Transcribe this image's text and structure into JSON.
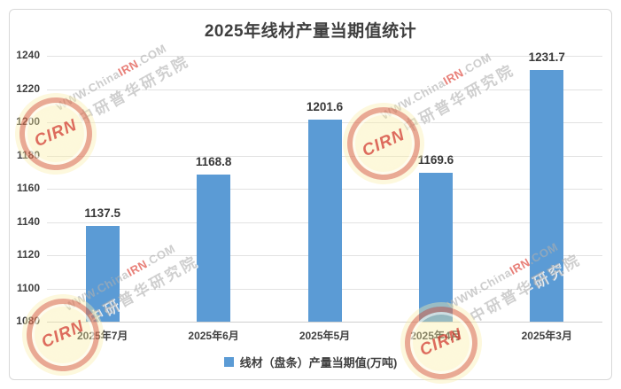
{
  "title": "2025年线材产量当期值统计",
  "chart_data": {
    "type": "bar",
    "title": "2025年线材产量当期值统计",
    "categories": [
      "2025年7月",
      "2025年6月",
      "2025年5月",
      "2025年4月",
      "2025年3月"
    ],
    "series": [
      {
        "name": "线材（盘条）产量当期值(万吨)",
        "values": [
          1137.5,
          1168.8,
          1201.6,
          1169.6,
          1231.7
        ]
      }
    ],
    "data_labels": [
      "1137.5",
      "1168.8",
      "1201.6",
      "1169.6",
      "1231.7"
    ],
    "xlabel": "",
    "ylabel": "",
    "ylim": [
      1080,
      1240
    ],
    "ytick_step": 20,
    "yticks": [
      1080,
      1100,
      1120,
      1140,
      1160,
      1180,
      1200,
      1220,
      1240
    ],
    "grid": true,
    "legend_position": "bottom",
    "bar_color": "#5B9BD5"
  },
  "legend": {
    "label": "线材（盘条）产量当期值(万吨)"
  },
  "watermark": {
    "url_prefix": "WWW.China",
    "url_highlight": "IRN",
    "url_suffix": ".COM",
    "brand_text": "中研普华研究院",
    "stamp_text": "CIRN"
  },
  "colors": {
    "bar": "#5B9BD5",
    "grid": "#E2E2E2",
    "axis_text": "#404040",
    "title_text": "#3F3F3F",
    "frame_border": "#D8D8D8",
    "watermark_gray": "#AEAEAE",
    "watermark_red": "#E26058"
  }
}
